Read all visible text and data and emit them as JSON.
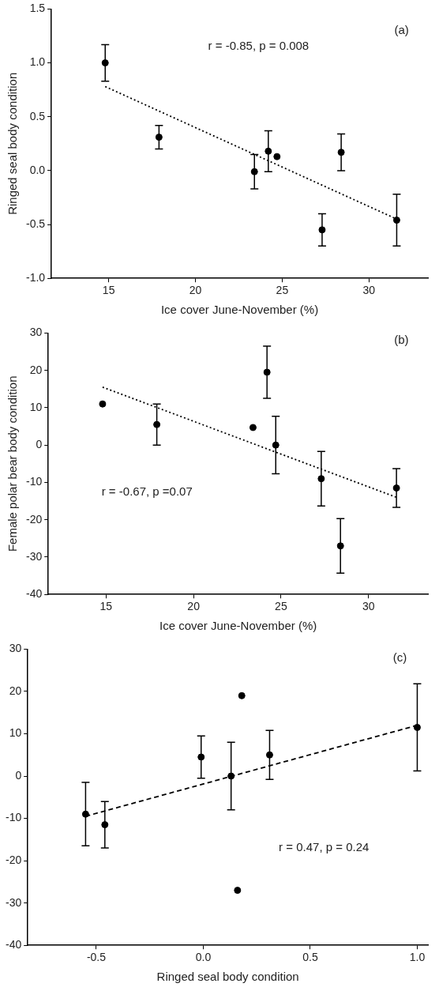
{
  "chart_data": [
    {
      "type": "scatter",
      "xlabel": "Ice cover June-November (%)",
      "ylabel": "Ringed seal body condition",
      "xlim": [
        11.7,
        33.4
      ],
      "xticks": [
        15,
        20,
        25,
        30
      ],
      "ylim": [
        -1,
        1.5
      ],
      "yticks": [
        {
          "value": -1,
          "label": "-1.0"
        },
        -0.5,
        {
          "value": 0,
          "label": "0.0"
        },
        0.5,
        {
          "value": 1,
          "label": "1.0"
        },
        1.5
      ],
      "annotations": [
        "(a)",
        "r = -0.85, p = 0.008"
      ],
      "series": [
        {
          "marker": "circle",
          "color": "#000000",
          "x": [
            14.8,
            17.9,
            23.4,
            24.2,
            24.7,
            27.3,
            28.4,
            31.6
          ],
          "values": [
            1.0,
            0.31,
            -0.01,
            0.18,
            0.13,
            -0.55,
            0.17,
            -0.46
          ],
          "errors": [
            0.17,
            0.11,
            0.16,
            0.19,
            null,
            0.15,
            0.17,
            0.24
          ]
        },
        {
          "type": "line",
          "marker": "none",
          "line_style": "dotted",
          "color": "#000000",
          "x": [
            14.8,
            31.6
          ],
          "values": [
            0.78,
            -0.45
          ]
        }
      ]
    },
    {
      "type": "scatter",
      "xlabel": "Ice cover June-November (%)",
      "ylabel": "Female polar bear body condition",
      "xlim": [
        11.7,
        33.4
      ],
      "xticks": [
        15,
        20,
        25,
        30
      ],
      "ylim": [
        -40,
        30
      ],
      "yticks": [
        -40,
        -30,
        -20,
        -10,
        0,
        10,
        20,
        30
      ],
      "annotations": [
        "(b)",
        "r = -0.67, p =0.07"
      ],
      "series": [
        {
          "marker": "circle",
          "color": "#000000",
          "x": [
            14.8,
            17.9,
            23.4,
            24.2,
            24.7,
            27.3,
            28.4,
            31.6
          ],
          "values": [
            11,
            5.5,
            4.7,
            19.5,
            0,
            -9,
            -27,
            -11.5
          ],
          "errors": [
            null,
            5.5,
            null,
            7,
            7.7,
            7.3,
            7.3,
            5.2
          ]
        },
        {
          "type": "line",
          "marker": "none",
          "line_style": "dotted",
          "color": "#000000",
          "x": [
            14.8,
            31.6
          ],
          "values": [
            15.5,
            -14
          ]
        }
      ]
    },
    {
      "type": "scatter",
      "xlabel": "Ringed seal body condition",
      "xlim": [
        -0.82,
        1.05
      ],
      "xticks": [
        -0.5,
        {
          "value": 0,
          "label": "0.0"
        },
        0.5,
        {
          "value": 1,
          "label": "1.0"
        }
      ],
      "ylim": [
        -40,
        30
      ],
      "yticks": [
        -40,
        -30,
        -20,
        -10,
        0,
        10,
        20,
        30
      ],
      "annotations": [
        "(c)",
        "r = 0.47, p = 0.24"
      ],
      "series": [
        {
          "marker": "circle",
          "color": "#000000",
          "x": [
            -0.55,
            -0.46,
            -0.01,
            0.13,
            0.18,
            0.16,
            0.31,
            1.0
          ],
          "values": [
            -9,
            -11.5,
            4.5,
            0,
            19,
            -27,
            5,
            11.5
          ],
          "errors": [
            7.5,
            5.5,
            5,
            8,
            null,
            null,
            5.8,
            10.3
          ]
        },
        {
          "type": "line",
          "marker": "none",
          "line_style": "dashed",
          "color": "#000000",
          "x": [
            -0.55,
            1.0
          ],
          "values": [
            -9.5,
            12
          ]
        }
      ]
    }
  ]
}
